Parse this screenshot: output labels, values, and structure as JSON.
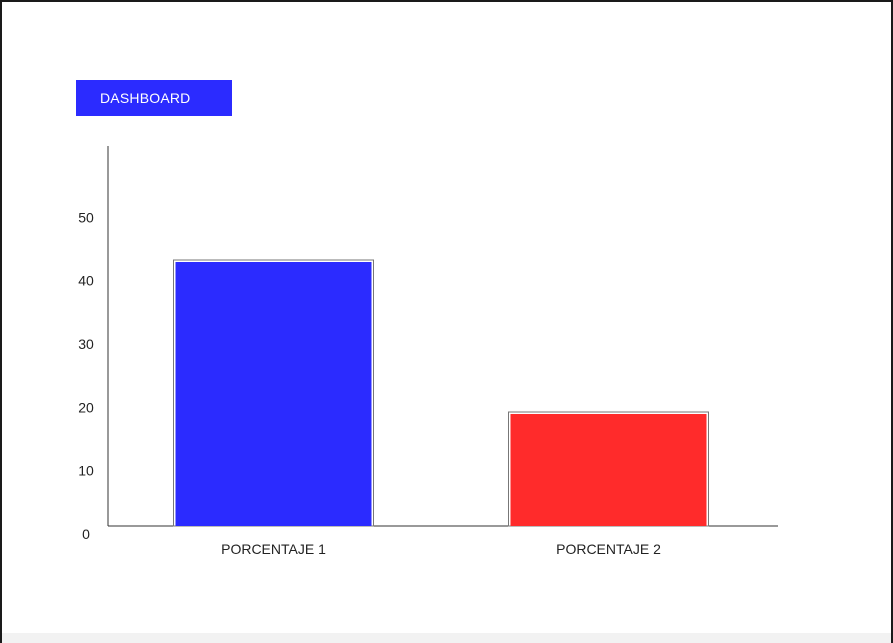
{
  "header": {
    "dashboard_label": "DASHBOARD",
    "accent_color": "#2b2bff"
  },
  "chart_data": {
    "type": "bar",
    "categories": [
      "PORCENTAJE 1",
      "PORCENTAJE 2"
    ],
    "values": [
      42,
      18
    ],
    "colors": [
      "#2b2bff",
      "#ff2b2b"
    ],
    "ylim": [
      0,
      60
    ],
    "yticks": [
      0,
      10,
      20,
      30,
      40,
      50
    ],
    "title": "",
    "xlabel": "",
    "ylabel": "",
    "grid": false
  }
}
